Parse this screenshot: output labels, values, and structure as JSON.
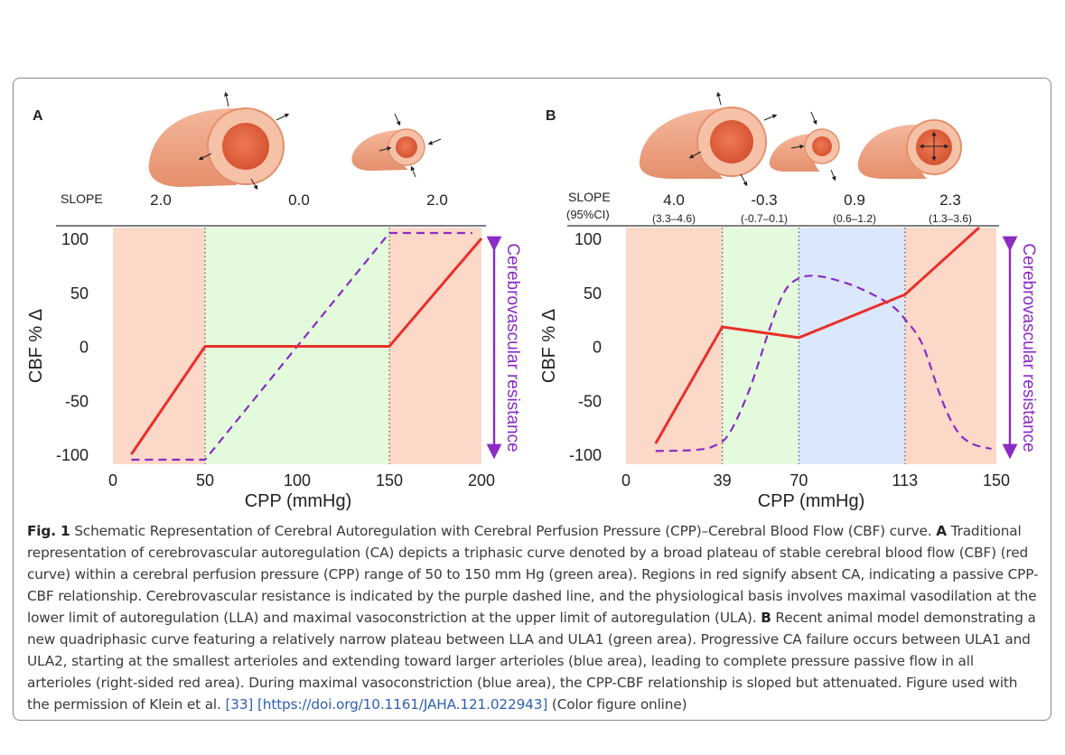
{
  "figure": {
    "panels": [
      {
        "letter": "A",
        "slope_label": "SLOPE",
        "slope_sublabel": "",
        "slopes": [
          "2.0",
          "0.0",
          "2.0"
        ],
        "slope_ci": []
      },
      {
        "letter": "B",
        "slope_label": "SLOPE",
        "slope_sublabel": "(95%CI)",
        "slopes": [
          "4.0",
          "-0.3",
          "0.9",
          "2.3"
        ],
        "slope_ci": [
          "(3.3–4.6)",
          "(-0.7–0.1)",
          "(0.6–1.2)",
          "(1.3–3.6)"
        ]
      }
    ]
  },
  "colors": {
    "passive": "#fbd8c8",
    "plateau": "#e3fbdc",
    "constriction": "#dbe8fb",
    "cbf": "#e8302a",
    "resistance": "#8a2cc4"
  },
  "chart_data": [
    {
      "type": "line",
      "panel": "A",
      "title": "",
      "xlabel": "CPP (mmHg)",
      "ylabel": "CBF % Δ",
      "right_label": "Cerebrovascular resistance",
      "xlim": [
        0,
        200
      ],
      "ylim": [
        -100,
        100
      ],
      "xticks": [
        0,
        50,
        100,
        150,
        200
      ],
      "xtick_labels": [
        "0",
        "50",
        "100",
        "150",
        "200"
      ],
      "yticks": [
        100,
        50,
        0,
        -50,
        -100
      ],
      "ytick_labels": [
        "100",
        "50",
        "0",
        "-50",
        "-100"
      ],
      "regions": [
        {
          "from": 0,
          "to": 50,
          "kind": "passive"
        },
        {
          "from": 50,
          "to": 150,
          "kind": "plateau"
        },
        {
          "from": 150,
          "to": 200,
          "kind": "passive"
        }
      ],
      "boundaries": [
        50,
        150
      ],
      "series": [
        {
          "name": "CBF",
          "style": "solid",
          "x": [
            10,
            50,
            150,
            200
          ],
          "y": [
            -100,
            0,
            0,
            100
          ]
        },
        {
          "name": "Cerebrovascular resistance",
          "style": "dashed",
          "x": [
            10,
            50,
            150,
            195
          ],
          "y": [
            -105,
            -105,
            105,
            105
          ]
        }
      ]
    },
    {
      "type": "line",
      "panel": "B",
      "title": "",
      "xlabel": "CPP (mmHg)",
      "ylabel": "CBF % Δ",
      "right_label": "Cerebrovascular resistance",
      "xlim": [
        0,
        150
      ],
      "ylim": [
        -100,
        100
      ],
      "xticks": [
        0,
        39,
        70,
        113,
        150
      ],
      "xtick_labels": [
        "0",
        "39",
        "70",
        "113",
        "150"
      ],
      "yticks": [
        100,
        50,
        0,
        -50,
        -100
      ],
      "ytick_labels": [
        "100",
        "50",
        "0",
        "-50",
        "-100"
      ],
      "regions": [
        {
          "from": 0,
          "to": 39,
          "kind": "passive"
        },
        {
          "from": 39,
          "to": 70,
          "kind": "plateau"
        },
        {
          "from": 70,
          "to": 113,
          "kind": "constriction"
        },
        {
          "from": 113,
          "to": 150,
          "kind": "passive"
        }
      ],
      "boundaries": [
        39,
        70,
        113
      ],
      "series": [
        {
          "name": "CBF",
          "style": "solid",
          "x": [
            12,
            39,
            70,
            113,
            143
          ],
          "y": [
            -90,
            18,
            8,
            48,
            110
          ]
        },
        {
          "name": "Cerebrovascular resistance",
          "style": "dashed",
          "x": [
            12,
            28,
            36,
            42,
            50,
            58,
            64,
            70,
            78,
            90,
            100,
            108,
            113,
            120,
            128,
            134,
            140,
            148
          ],
          "y": [
            -97,
            -96,
            -92,
            -80,
            -40,
            15,
            50,
            63,
            65,
            58,
            48,
            37,
            25,
            2,
            -50,
            -78,
            -90,
            -95
          ]
        }
      ]
    }
  ],
  "caption": {
    "label": "Fig. 1",
    "text_1": "Schematic Representation of Cerebral Autoregulation with Cerebral Perfusion Pressure (CPP)–Cerebral Blood Flow (CBF) curve.",
    "bold_a": "A",
    "text_2": "Traditional representation of cerebrovascular autoregulation (CA) depicts a triphasic curve denoted by a broad plateau of stable cerebral blood flow (CBF) (red curve) within a cerebral perfusion pressure (CPP) range of 50 to 150 mm Hg (green area). Regions in red signify absent CA, indicating a passive CPP-CBF relationship. Cerebrovascular resistance is indicated by the purple dashed line, and the physiological basis involves maximal vasodilation at the lower limit of autoregulation (LLA) and maximal vasoconstriction at the upper limit of autoregulation (ULA).",
    "bold_b": "B",
    "text_3": "Recent animal model demonstrating a new quadriphasic curve featuring a relatively narrow plateau between LLA and ULA1 (green area). Progressive CA failure occurs between ULA1 and ULA2, starting at the smallest arterioles and extending toward larger arterioles (blue area), leading to complete pressure passive flow in all arterioles (right-sided red area). During maximal vasoconstriction (blue area), the CPP-CBF relationship is sloped but attenuated. Figure used with the permission of Klein et al.",
    "ref": "[33]",
    "link": "[https://doi.org/10.1161/JAHA.121.022943]",
    "text_4": "(Color figure online)"
  }
}
